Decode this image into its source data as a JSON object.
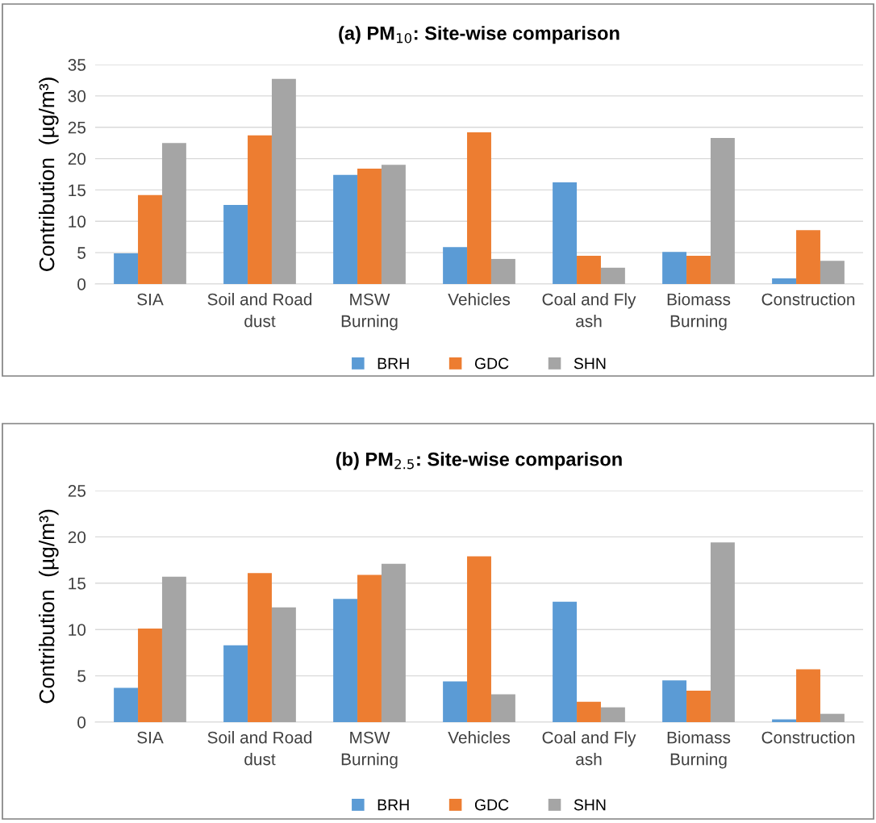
{
  "chart_data": [
    {
      "type": "bar",
      "title": "(a) PM$_{10}$: Site-wise comparison",
      "ylabel": "Contribution  (µg/m³)",
      "categories": [
        "SIA",
        "Soil and Road\ndust",
        "MSW\nBurning",
        "Vehicles",
        "Coal and Fly\nash",
        "Biomass\nBurning",
        "Construction"
      ],
      "ylim": [
        0,
        35
      ],
      "yticks": [
        0,
        5,
        10,
        15,
        20,
        25,
        30,
        35
      ],
      "grid": "y",
      "legend": "bottom",
      "series": [
        {
          "name": "BRH",
          "color": "#5b9bd5",
          "values": [
            4.9,
            12.6,
            17.4,
            5.9,
            16.2,
            5.1,
            0.9
          ]
        },
        {
          "name": "GDC",
          "color": "#ed7d31",
          "values": [
            14.2,
            23.7,
            18.4,
            24.2,
            4.5,
            4.5,
            8.6
          ]
        },
        {
          "name": "SHN",
          "color": "#a5a5a5",
          "values": [
            22.5,
            32.7,
            19.0,
            4.0,
            2.6,
            23.3,
            3.7
          ]
        }
      ]
    },
    {
      "type": "bar",
      "title": "(b) PM$_{2.5}$: Site-wise comparison",
      "ylabel": "Contribution  (µg/m³)",
      "categories": [
        "SIA",
        "Soil and Road\ndust",
        "MSW\nBurning",
        "Vehicles",
        "Coal and Fly\nash",
        "Biomass\nBurning",
        "Construction"
      ],
      "ylim": [
        0,
        25
      ],
      "yticks": [
        0,
        5,
        10,
        15,
        20,
        25
      ],
      "grid": "y",
      "legend": "bottom",
      "series": [
        {
          "name": "BRH",
          "color": "#5b9bd5",
          "values": [
            3.7,
            8.3,
            13.3,
            4.4,
            13.0,
            4.5,
            0.3
          ]
        },
        {
          "name": "GDC",
          "color": "#ed7d31",
          "values": [
            10.1,
            16.1,
            15.9,
            17.9,
            2.2,
            3.4,
            5.7
          ]
        },
        {
          "name": "SHN",
          "color": "#a5a5a5",
          "values": [
            15.7,
            12.4,
            17.1,
            3.0,
            1.6,
            19.4,
            0.9
          ]
        }
      ]
    }
  ]
}
